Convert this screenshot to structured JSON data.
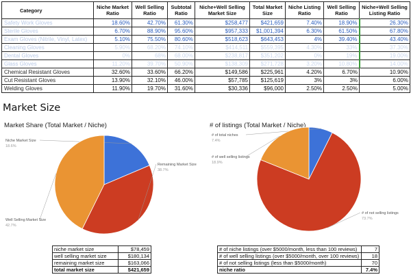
{
  "top_table": {
    "headers": [
      "Category",
      "Niche Market Ratio",
      "Well Selling Ratio",
      "Subtotal Ratio",
      "Niche+Well Selling Market Size",
      "Total Market Size",
      "Niche Listing Ratio",
      "Well Selling Ratio",
      "Niche+Well Selling Listing Ratio"
    ],
    "rows": [
      {
        "style": "blue",
        "cells": [
          "Safety Work Gloves",
          "18.60%",
          "42.70%",
          "61.30%",
          "$258,477",
          "$421,659",
          "7.40%",
          "18.90%",
          "26.30%"
        ]
      },
      {
        "style": "blue",
        "cells": [
          "Sterile Gloves",
          "6.70%",
          "88.90%",
          "95.60%",
          "$957,333",
          "$1,001,394",
          "6.30%",
          "61.50%",
          "67.80%"
        ]
      },
      {
        "style": "blue",
        "cells": [
          "Exam Gloves (Nitrile, Vinyl, Latex)",
          "5.10%",
          "75.50%",
          "80.60%",
          "$518,623",
          "$643,453",
          "4%",
          "39.40%",
          "43.40%"
        ]
      },
      {
        "style": "blur",
        "cells": [
          "Cleaning Gloves",
          "5.90%",
          "68.20%",
          "74.10%",
          "$414,511",
          "$559,395",
          "4.30%",
          "33%",
          "37.30%"
        ]
      },
      {
        "style": "blur",
        "cells": [
          "Dental Gloves",
          "0%",
          "68%",
          "68.00%",
          "$238,817",
          "$351,202",
          "0%",
          "19%",
          "19.00%"
        ]
      },
      {
        "style": "blur",
        "cells": [
          "Glass Gloves",
          "11.20%",
          "39.70%",
          "50.90%",
          "$138,309",
          "$271,728",
          "3.20%",
          "10.80%",
          "14.00%"
        ]
      },
      {
        "style": "dark",
        "cells": [
          "Chemical Resistant Gloves",
          "32.60%",
          "33.60%",
          "66.20%",
          "$149,586",
          "$225,961",
          "4.20%",
          "6.70%",
          "10.90%"
        ]
      },
      {
        "style": "dark",
        "cells": [
          "Cut Resistant Gloves",
          "13.90%",
          "32.10%",
          "46.00%",
          "$57,785",
          "$125,619",
          "3%",
          "3%",
          "6.00%"
        ]
      },
      {
        "style": "dark",
        "cells": [
          "Welding Gloves",
          "11.90%",
          "19.70%",
          "31.60%",
          "$30,336",
          "$96,000",
          "2.50%",
          "2.50%",
          "5.00%"
        ]
      }
    ]
  },
  "section_title": "Market Size",
  "chart_data": [
    {
      "type": "pie",
      "title": "Market Share (Total Market / Niche)",
      "series": [
        {
          "name": "Niche Market Size",
          "value": 18.6,
          "label": "18.6%",
          "color": "#3d72d8"
        },
        {
          "name": "Remaining Market Size",
          "value": 38.7,
          "label": "38.7%",
          "color": "#cc3c22"
        },
        {
          "name": "Well Selling Market Size",
          "value": 42.7,
          "label": "42.7%",
          "color": "#ea9433"
        }
      ]
    },
    {
      "type": "pie",
      "title": "# of listings (Total Market / Niche)",
      "series": [
        {
          "name": "# of total niches",
          "value": 7.4,
          "label": "7.4%",
          "color": "#3d72d8"
        },
        {
          "name": "# of not selling listings",
          "value": 73.7,
          "label": "73.7%",
          "color": "#cc3c22"
        },
        {
          "name": "# of well selling listings",
          "value": 18.9,
          "label": "18.9%",
          "color": "#ea9433"
        }
      ]
    }
  ],
  "left_table": {
    "rows": [
      {
        "label": "niche market size",
        "value": "$78,459"
      },
      {
        "label": "well selling market size",
        "value": "$180,134"
      },
      {
        "label": "remaining market size",
        "value": "$163,066"
      },
      {
        "label": "total market size",
        "value": "$421,659"
      }
    ]
  },
  "right_table": {
    "rows": [
      {
        "label": "# of niche listings (over $5000/month, less than 100 reviews)",
        "value": "7"
      },
      {
        "label": "# of well selling listings (over $5000/month, over 100 reviews)",
        "value": "18"
      },
      {
        "label": "# of not selling listings (less than $5000/month)",
        "value": "70"
      },
      {
        "label": "niche ratio",
        "value": "7.4%"
      }
    ]
  }
}
